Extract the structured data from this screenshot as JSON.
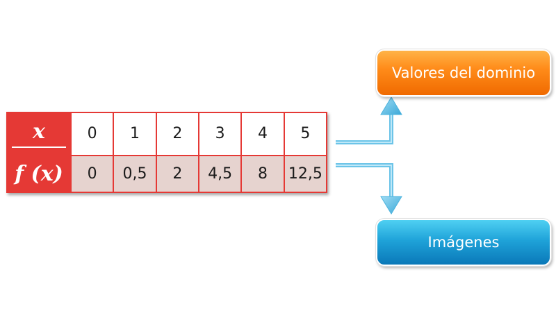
{
  "table": {
    "x_label": "x",
    "fx_label": "f (x)",
    "x_values": [
      "0",
      "1",
      "2",
      "3",
      "4",
      "5"
    ],
    "fx_values": [
      "0",
      "0,5",
      "2",
      "4,5",
      "8",
      "12,5"
    ]
  },
  "boxes": {
    "domain_label": "Valores del dominio",
    "images_label": "Imágenes"
  },
  "colors": {
    "table_header": "#e53935",
    "fx_row_fill": "#e6d3cf",
    "domain_box": "#ff8c1a",
    "images_box": "#1fa3d9",
    "arrow": "#6cc4e8"
  }
}
